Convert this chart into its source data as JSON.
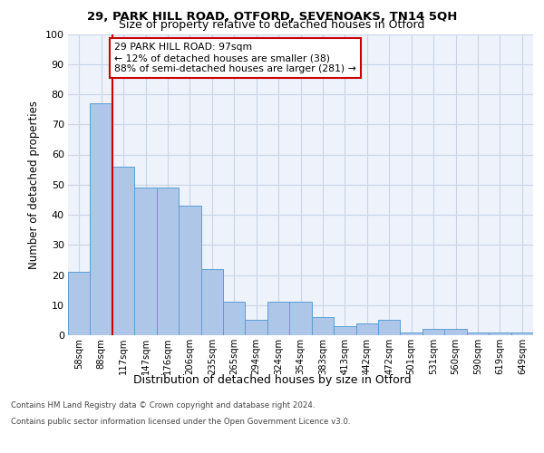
{
  "title1": "29, PARK HILL ROAD, OTFORD, SEVENOAKS, TN14 5QH",
  "title2": "Size of property relative to detached houses in Otford",
  "xlabel": "Distribution of detached houses by size in Otford",
  "ylabel": "Number of detached properties",
  "categories": [
    "58sqm",
    "88sqm",
    "117sqm",
    "147sqm",
    "176sqm",
    "206sqm",
    "235sqm",
    "265sqm",
    "294sqm",
    "324sqm",
    "354sqm",
    "383sqm",
    "413sqm",
    "442sqm",
    "472sqm",
    "501sqm",
    "531sqm",
    "560sqm",
    "590sqm",
    "619sqm",
    "649sqm"
  ],
  "values": [
    21,
    77,
    56,
    49,
    49,
    43,
    22,
    11,
    5,
    11,
    11,
    6,
    3,
    4,
    5,
    1,
    2,
    2,
    1,
    1,
    1
  ],
  "bar_color": "#aec6e8",
  "bar_edge_color": "#5a9fd4",
  "property_line_x": 1.5,
  "annotation_text": "29 PARK HILL ROAD: 97sqm\n← 12% of detached houses are smaller (38)\n88% of semi-detached houses are larger (281) →",
  "annotation_box_color": "#ffffff",
  "annotation_box_edge": "#cc0000",
  "red_line_color": "#cc0000",
  "ylim": [
    0,
    100
  ],
  "yticks": [
    0,
    10,
    20,
    30,
    40,
    50,
    60,
    70,
    80,
    90,
    100
  ],
  "grid_color": "#c8d4e8",
  "bg_color": "#eef2fa",
  "footer1": "Contains HM Land Registry data © Crown copyright and database right 2024.",
  "footer2": "Contains public sector information licensed under the Open Government Licence v3.0."
}
